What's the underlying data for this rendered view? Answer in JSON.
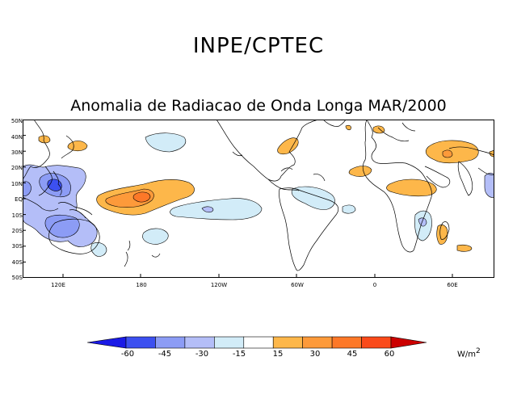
{
  "header": {
    "institution": "INPE/CPTEC",
    "subtitle": "Anomalia de Radiacao de Onda Longa MAR/2000"
  },
  "map": {
    "lat_labels": [
      "50N",
      "40N",
      "30N",
      "20N",
      "10N",
      "EQ",
      "10S",
      "20S",
      "30S",
      "40S",
      "50S"
    ],
    "lon_labels": [
      "120E",
      "180",
      "120W",
      "60W",
      "0",
      "60E"
    ],
    "lat_range": [
      -50,
      50
    ],
    "lon_range": [
      90,
      440
    ]
  },
  "colorbar": {
    "labels": [
      "-60",
      "-45",
      "-30",
      "-15",
      "15",
      "30",
      "45",
      "60"
    ],
    "colors": [
      "#1a1ae6",
      "#3c50f0",
      "#8c9cf5",
      "#b4bef8",
      "#d2ecf8",
      "#ffffff",
      "#fdb74a",
      "#fd9a3a",
      "#fd7828",
      "#fa4a1a",
      "#cc0000"
    ],
    "units": "W/m",
    "units_power": "2"
  }
}
